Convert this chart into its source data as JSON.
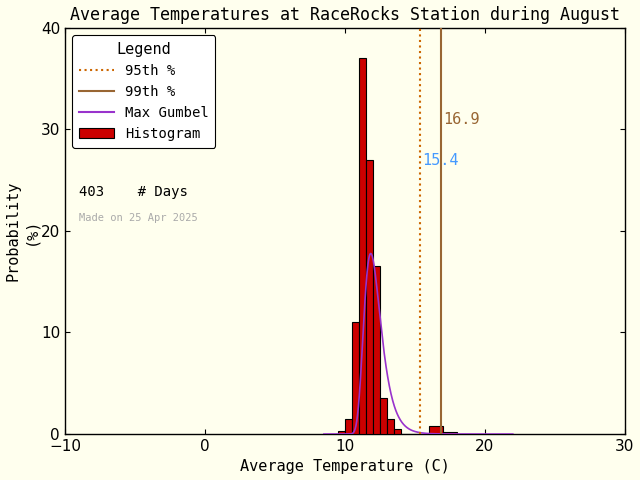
{
  "title": "Average Temperatures at RaceRocks Station during August",
  "xlabel": "Average Temperature (C)",
  "ylabel": "Probability\n(%)",
  "xlim": [
    -10,
    30
  ],
  "ylim": [
    0,
    40
  ],
  "xticks": [
    -10,
    0,
    10,
    20,
    30
  ],
  "yticks": [
    0,
    10,
    20,
    30,
    40
  ],
  "bar_edges": [
    9.0,
    9.5,
    10.0,
    10.5,
    11.0,
    11.5,
    12.0,
    12.5,
    13.0,
    13.5,
    14.0,
    14.5,
    15.0,
    16.0,
    17.0,
    18.0
  ],
  "bar_heights": [
    0.0,
    0.25,
    1.5,
    11.0,
    37.0,
    27.0,
    16.5,
    3.5,
    1.5,
    0.5,
    0.0,
    0.0,
    0.0,
    0.8,
    0.2,
    0.0
  ],
  "bar_widths": [
    0.5,
    0.5,
    0.5,
    0.5,
    0.5,
    0.5,
    0.5,
    0.5,
    0.5,
    0.5,
    0.5,
    0.5,
    1.0,
    1.0,
    1.0,
    1.0
  ],
  "bar_color": "#cc0000",
  "bar_edgecolor": "#000000",
  "gumbel_color": "#9933cc",
  "gumbel_mu": 11.85,
  "gumbel_beta": 0.6,
  "gumbel_scale": 29.0,
  "p95_value": 15.4,
  "p95_color": "#cc6600",
  "p95_label_color": "#4499ff",
  "p99_value": 16.9,
  "p99_color": "#996633",
  "n_days": 403,
  "made_on": "Made on 25 Apr 2025",
  "bg_color": "#ffffee",
  "title_fontsize": 12,
  "axis_fontsize": 11,
  "tick_fontsize": 11,
  "legend_fontsize": 10,
  "annot_fontsize": 11
}
